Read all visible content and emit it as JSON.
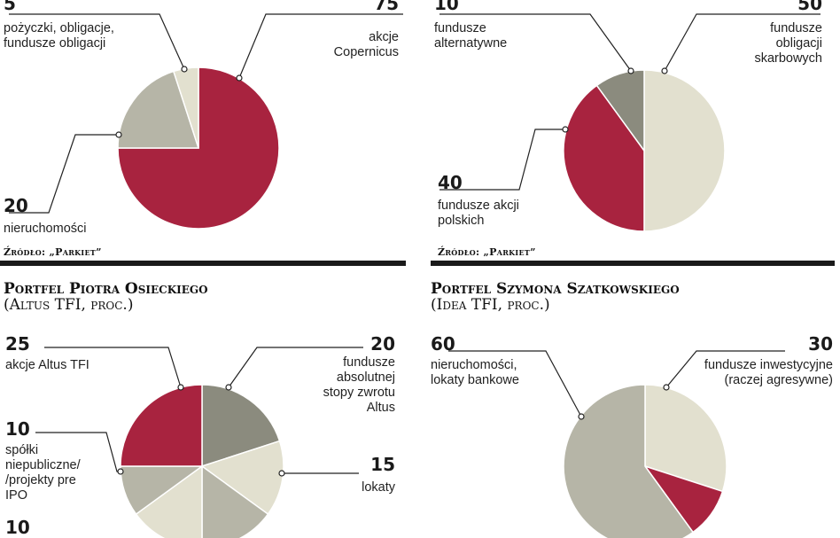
{
  "colors": {
    "crimson": "#a8233f",
    "dark_gray": "#8b8b7e",
    "mid_gray": "#b6b5a7",
    "light_beige": "#e2e0cf",
    "leader": "#222222"
  },
  "chart_data": [
    {
      "type": "pie",
      "title": "",
      "unit": "",
      "slices": [
        {
          "value": 75,
          "value_label": "75",
          "label": "akcje\nCopernicus",
          "color_key": "crimson"
        },
        {
          "value": 20,
          "value_label": "20",
          "label": "nieruchomości",
          "color_key": "mid_gray"
        },
        {
          "value": 5,
          "value_label": "5",
          "label": "pożyczki, obligacje,\nfundusze obligacji",
          "color_key": "light_beige"
        }
      ],
      "source": "Źródło: „Parkiet”"
    },
    {
      "type": "pie",
      "title": "",
      "unit": "",
      "slices": [
        {
          "value": 50,
          "value_label": "50",
          "label": "fundusze\nobligacji\nskarbowych",
          "color_key": "light_beige"
        },
        {
          "value": 40,
          "value_label": "40",
          "label": "fundusze akcji\npolskich",
          "color_key": "crimson"
        },
        {
          "value": 10,
          "value_label": "10",
          "label": "fundusze\nalternatywne",
          "color_key": "dark_gray"
        }
      ],
      "source": "Źródło: „Parkiet”"
    },
    {
      "type": "pie",
      "title": "Portfel Piotra Osieckiego",
      "subtitle": "(Altus TFI, proc.)",
      "slices": [
        {
          "value": 20,
          "value_label": "20",
          "label": "fundusze\nabsolutnej\nstopy zwrotu\nAltus",
          "color_key": "dark_gray"
        },
        {
          "value": 15,
          "value_label": "15",
          "label": "lokaty",
          "color_key": "light_beige"
        },
        {
          "value": 15,
          "value_label": "",
          "label": "",
          "color_key": "mid_gray"
        },
        {
          "value": 15,
          "value_label": "",
          "label": "",
          "color_key": "light_beige"
        },
        {
          "value": 10,
          "value_label": "10",
          "label": "spółki\nniepubliczne/\n/projekty pre\nIPO",
          "color_key": "mid_gray"
        },
        {
          "value": 25,
          "value_label": "25",
          "label": "akcje Altus TFI",
          "color_key": "crimson"
        }
      ],
      "extra_value_label": "10"
    },
    {
      "type": "pie",
      "title": "Portfel Szymona Szatkowskiego",
      "subtitle": "(Idea TFI, proc.)",
      "slices": [
        {
          "value": 30,
          "value_label": "30",
          "label": "fundusze inwestycyjne\n(raczej agresywne)",
          "color_key": "light_beige"
        },
        {
          "value": 10,
          "value_label": "",
          "label": "",
          "color_key": "crimson"
        },
        {
          "value": 60,
          "value_label": "60",
          "label": "nieruchomości,\nlokaty bankowe",
          "color_key": "mid_gray"
        }
      ]
    }
  ]
}
